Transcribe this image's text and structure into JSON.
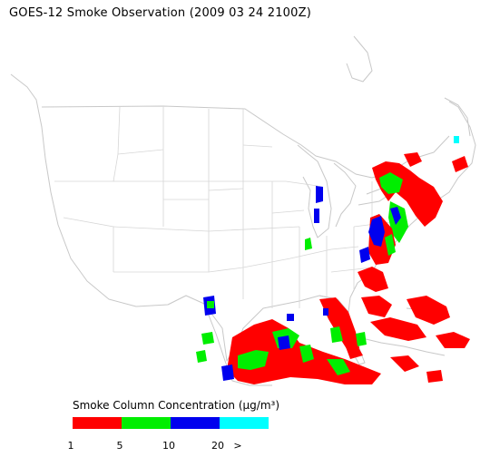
{
  "title": "GOES-12 Smoke Observation (2009 03 24  2100Z)",
  "legend": {
    "title_main": "Smoke Column Concentration (",
    "title_unit": "μg/m³",
    "title_close": ")",
    "bins": [
      {
        "color": "#ff0000",
        "label": "1"
      },
      {
        "color": "#00ee00",
        "label": "5"
      },
      {
        "color": "#0000ee",
        "label": "10"
      },
      {
        "color": "#00ffff",
        "label": "20"
      }
    ],
    "overflow_label": ">"
  },
  "colors": {
    "red": "#ff0000",
    "green": "#00ee00",
    "blue": "#0000ee",
    "cyan": "#00ffff",
    "boundary": "#c8c8c8"
  }
}
